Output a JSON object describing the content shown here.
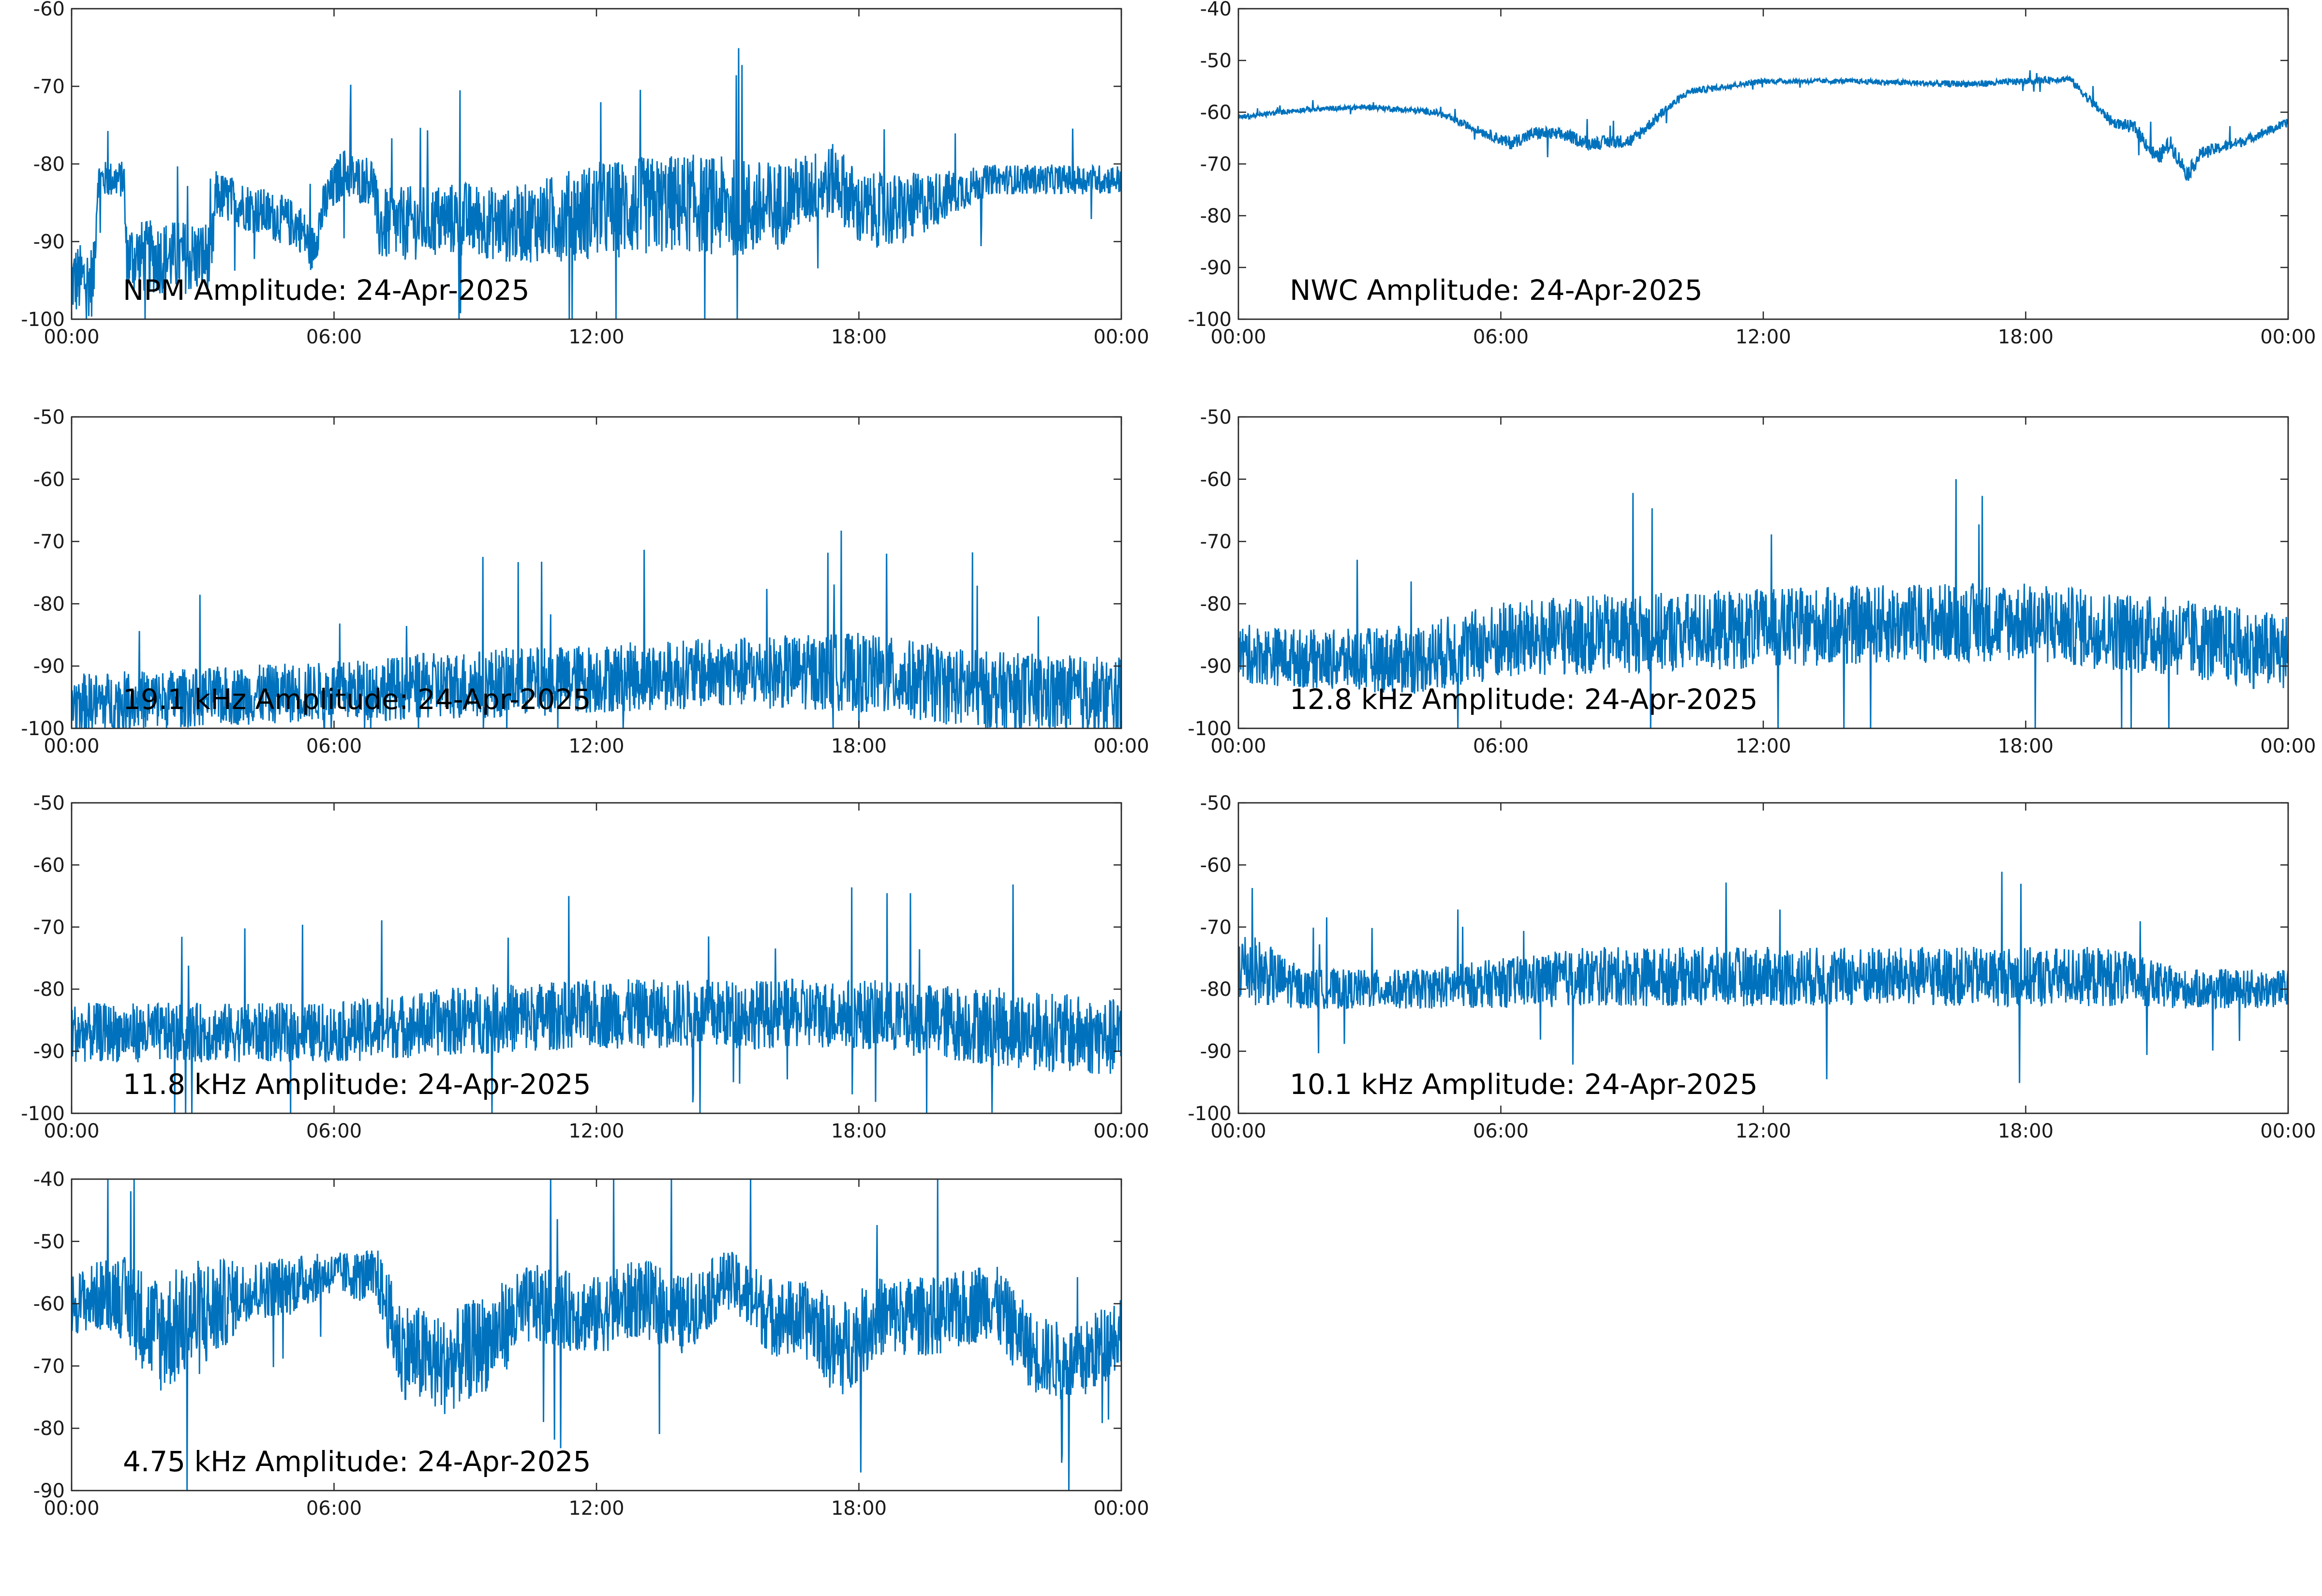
{
  "figure": {
    "background": "#ffffff",
    "series_color": "#0072bd"
  },
  "chart_data": [
    {
      "type": "line",
      "title": "NPM Amplitude: 24-Apr-2025",
      "x_tick_labels": [
        "00:00",
        "06:00",
        "12:00",
        "18:00",
        "00:00"
      ],
      "x_range_hours": [
        0,
        24
      ],
      "ylim": [
        -100,
        -60
      ],
      "y_ticks": [
        -60,
        -70,
        -80,
        -90,
        -100
      ],
      "grid": false,
      "envelope": {
        "hours": [
          0,
          0.5,
          0.6,
          1.2,
          1.25,
          3.2,
          3.3,
          5.2,
          5.5,
          5.8,
          6.2,
          6.5,
          6.9,
          7.0,
          9.0,
          10.0,
          12.0,
          14.0,
          16.0,
          16.5,
          17.5,
          18.0,
          19.0,
          20.0,
          21.0,
          22.0,
          24.0
        ],
        "center": [
          -95,
          -95,
          -82,
          -82,
          -92,
          -92,
          -84,
          -88,
          -91,
          -85,
          -81,
          -82,
          -82,
          -88,
          -87,
          -88,
          -86,
          -85,
          -86,
          -84,
          -82,
          -86,
          -86,
          -84,
          -82,
          -82,
          -82
        ],
        "spread": [
          3,
          3,
          1.5,
          1.5,
          3,
          3,
          2,
          2,
          2,
          2,
          2,
          2,
          2,
          3,
          3,
          3,
          4,
          4,
          4,
          3,
          3,
          3,
          3,
          2,
          1.2,
          1.2,
          1.2
        ]
      }
    },
    {
      "type": "line",
      "title": "NWC Amplitude: 24-Apr-2025",
      "x_tick_labels": [
        "00:00",
        "06:00",
        "12:00",
        "18:00",
        "00:00"
      ],
      "x_range_hours": [
        0,
        24
      ],
      "ylim": [
        -100,
        -40
      ],
      "y_ticks": [
        -40,
        -50,
        -60,
        -70,
        -80,
        -90,
        -100
      ],
      "grid": false,
      "envelope": {
        "hours": [
          0,
          1.5,
          3.0,
          4.5,
          5.5,
          6.2,
          6.8,
          7.5,
          8.0,
          9.0,
          9.7,
          10.3,
          12.0,
          14.0,
          16.0,
          17.0,
          18.0,
          19.0,
          19.5,
          20.0,
          20.5,
          21.0,
          21.3,
          21.7,
          22.0,
          23.0,
          24.0
        ],
        "center": [
          -61,
          -59.5,
          -59,
          -60,
          -63.5,
          -66,
          -64,
          -64.5,
          -66,
          -65.5,
          -60,
          -56,
          -54,
          -54,
          -54.5,
          -54.5,
          -54,
          -53.5,
          -58,
          -62,
          -63,
          -69,
          -66,
          -72,
          -68,
          -65.5,
          -62
        ],
        "spread": [
          0.3,
          0.3,
          0.3,
          0.4,
          0.5,
          0.8,
          0.8,
          0.8,
          0.8,
          0.8,
          0.6,
          0.4,
          0.3,
          0.3,
          0.4,
          0.4,
          0.4,
          0.4,
          0.6,
          0.6,
          0.8,
          1,
          1,
          1,
          0.8,
          0.6,
          0.5
        ]
      }
    },
    {
      "type": "line",
      "title": "19.1 kHz Amplitude: 24-Apr-2025",
      "x_tick_labels": [
        "00:00",
        "06:00",
        "12:00",
        "18:00",
        "00:00"
      ],
      "x_range_hours": [
        0,
        24
      ],
      "ylim": [
        -100,
        -50
      ],
      "y_ticks": [
        -50,
        -60,
        -70,
        -80,
        -90,
        -100
      ],
      "grid": false,
      "envelope": {
        "hours": [
          0,
          3,
          6,
          9,
          12,
          15,
          18,
          21,
          24
        ],
        "center": [
          -96,
          -95,
          -94,
          -93,
          -92,
          -91,
          -91,
          -94,
          -95
        ],
        "spread": [
          3,
          3,
          3,
          3.5,
          3.5,
          3.5,
          4,
          4,
          4
        ]
      }
    },
    {
      "type": "line",
      "title": "12.8 kHz Amplitude: 24-Apr-2025",
      "x_tick_labels": [
        "00:00",
        "06:00",
        "12:00",
        "18:00",
        "00:00"
      ],
      "x_range_hours": [
        0,
        24
      ],
      "ylim": [
        -100,
        -50
      ],
      "y_ticks": [
        -50,
        -60,
        -70,
        -80,
        -90,
        -100
      ],
      "grid": false,
      "envelope": {
        "hours": [
          0,
          2,
          4,
          6,
          8,
          12,
          16,
          18,
          21,
          24
        ],
        "center": [
          -88,
          -89,
          -89,
          -86,
          -85,
          -84,
          -83,
          -83,
          -85,
          -88
        ],
        "spread": [
          3,
          3,
          3.5,
          4,
          4,
          4,
          4,
          4,
          4,
          4
        ]
      }
    },
    {
      "type": "line",
      "title": "11.8 kHz Amplitude: 24-Apr-2025",
      "x_tick_labels": [
        "00:00",
        "06:00",
        "12:00",
        "18:00",
        "00:00"
      ],
      "x_range_hours": [
        0,
        24
      ],
      "ylim": [
        -100,
        -50
      ],
      "y_ticks": [
        -50,
        -60,
        -70,
        -80,
        -90,
        -100
      ],
      "grid": false,
      "envelope": {
        "hours": [
          0,
          3,
          6,
          9,
          12,
          15,
          18,
          21,
          24
        ],
        "center": [
          -87,
          -87,
          -87,
          -85,
          -84,
          -84,
          -84,
          -86,
          -88
        ],
        "spread": [
          3,
          3,
          3,
          3.5,
          3.5,
          3.5,
          3.5,
          4,
          4
        ]
      }
    },
    {
      "type": "line",
      "title": "10.1 kHz Amplitude: 24-Apr-2025",
      "x_tick_labels": [
        "00:00",
        "06:00",
        "12:00",
        "18:00",
        "00:00"
      ],
      "x_range_hours": [
        0,
        24
      ],
      "ylim": [
        -100,
        -50
      ],
      "y_ticks": [
        -50,
        -60,
        -70,
        -80,
        -90,
        -100
      ],
      "grid": false,
      "envelope": {
        "hours": [
          0,
          1.5,
          4,
          8,
          12,
          16,
          20,
          21.5,
          24
        ],
        "center": [
          -76,
          -80,
          -80,
          -78,
          -78,
          -78,
          -78,
          -80,
          -80
        ],
        "spread": [
          4,
          2,
          2,
          3,
          3,
          3,
          3,
          2,
          2
        ]
      }
    },
    {
      "type": "line",
      "title": "4.75 kHz Amplitude: 24-Apr-2025",
      "x_tick_labels": [
        "00:00",
        "06:00",
        "12:00",
        "18:00",
        "00:00"
      ],
      "x_range_hours": [
        0,
        24
      ],
      "ylim": [
        -90,
        -40
      ],
      "y_ticks": [
        -40,
        -50,
        -60,
        -70,
        -80,
        -90
      ],
      "grid": false,
      "envelope": {
        "hours": [
          0,
          1,
          2,
          3,
          4,
          5,
          6,
          7,
          7.5,
          8.5,
          9.5,
          10.5,
          12,
          13,
          14,
          15,
          16,
          17,
          17.5,
          18.5,
          20,
          21,
          22,
          23,
          24
        ],
        "center": [
          -60,
          -58,
          -65,
          -62,
          -58,
          -57,
          -55,
          -56,
          -67,
          -70,
          -66,
          -60,
          -62,
          -59,
          -62,
          -56,
          -62,
          -63,
          -68,
          -62,
          -62,
          -59,
          -68,
          -70,
          -64
        ],
        "spread": [
          3,
          4,
          6,
          6,
          3,
          3,
          2,
          3,
          5,
          5,
          5,
          4,
          4,
          4,
          4,
          3,
          4,
          4,
          5,
          4,
          4,
          4,
          4,
          4,
          4
        ]
      }
    }
  ]
}
